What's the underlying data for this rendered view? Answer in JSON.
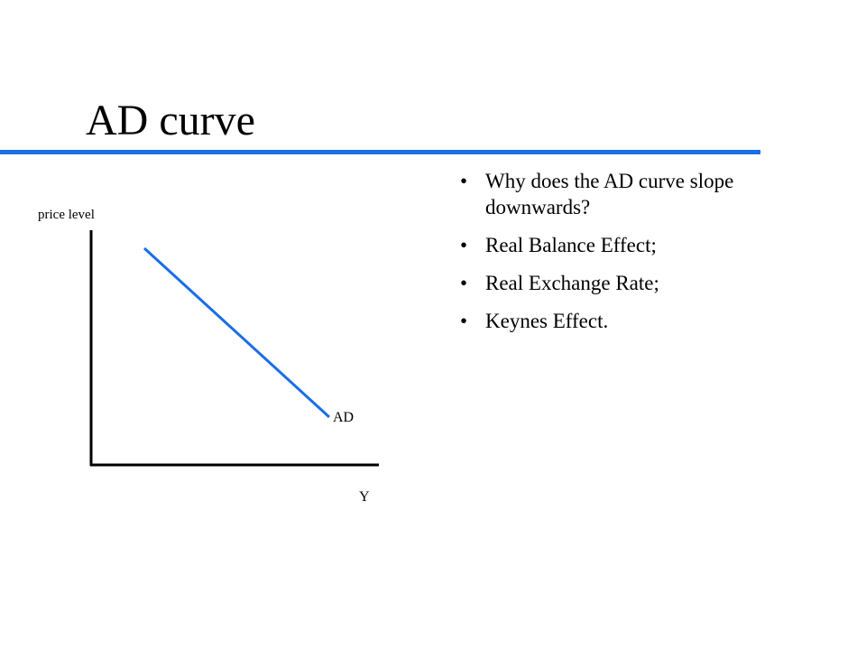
{
  "title": "AD curve",
  "diagram": {
    "y_axis_label": "price level",
    "x_axis_label": "Y",
    "curve_label": "AD"
  },
  "bullets": [
    "Why does the AD curve slope downwards?",
    "Real Balance Effect;",
    "Real Exchange Rate;",
    "Keynes Effect."
  ]
}
